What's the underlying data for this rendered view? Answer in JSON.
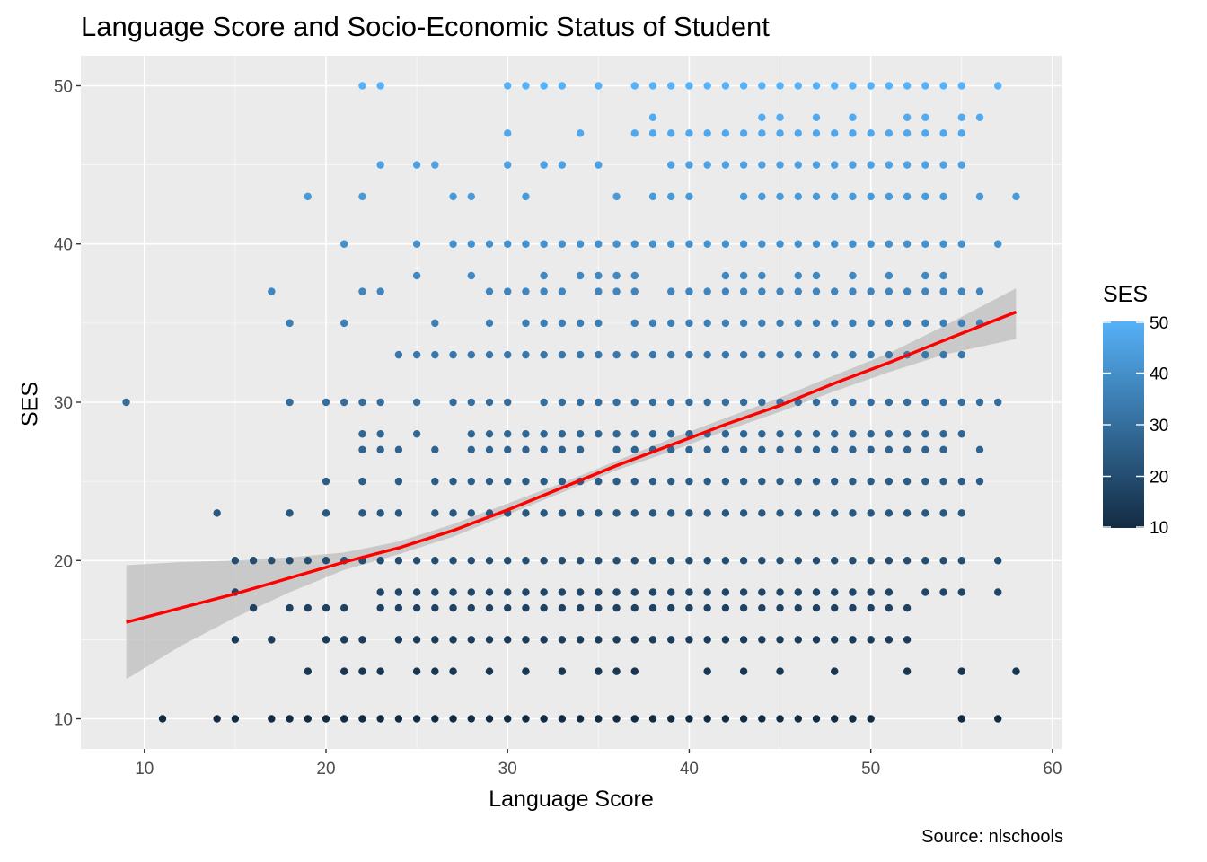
{
  "chart_data": {
    "type": "scatter",
    "title": "Language Score and Socio-Economic Status of Student",
    "xlabel": "Language Score",
    "ylabel": "SES",
    "caption": "Source: nlschools",
    "xlim": [
      6.5,
      60.5
    ],
    "ylim": [
      8.1,
      51.9
    ],
    "x_ticks": [
      10,
      20,
      30,
      40,
      50,
      60
    ],
    "y_ticks": [
      10,
      20,
      30,
      40,
      50
    ],
    "grid": true,
    "legend": {
      "title": "SES",
      "placement": "right",
      "type": "colorbar",
      "range": [
        10,
        50
      ],
      "ticks": [
        10,
        20,
        30,
        40,
        50
      ],
      "low_color": "#132B43",
      "high_color": "#56B1F7"
    },
    "panel_background": "#EBEBEB",
    "point_color_by": "SES",
    "smooth": {
      "method": "loess",
      "color": "#FF0000",
      "ribbon_color": "#BEBEBE",
      "x": [
        9,
        12,
        15,
        18,
        21,
        24,
        27,
        30,
        33,
        36,
        39,
        42,
        45,
        48,
        51,
        54,
        58
      ],
      "y": [
        16.1,
        17.0,
        17.9,
        18.9,
        19.9,
        20.8,
        21.9,
        23.2,
        24.6,
        26.0,
        27.3,
        28.6,
        29.8,
        31.2,
        32.5,
        33.9,
        35.7
      ],
      "lower": [
        12.5,
        14.6,
        16.4,
        18.0,
        19.4,
        20.4,
        21.5,
        22.9,
        24.3,
        25.7,
        26.9,
        28.2,
        29.4,
        30.7,
        31.9,
        33.0,
        34.0
      ],
      "upper": [
        19.7,
        19.9,
        20.0,
        20.2,
        20.5,
        21.2,
        22.3,
        23.6,
        24.9,
        26.3,
        27.7,
        29.0,
        30.3,
        31.7,
        33.1,
        34.8,
        37.2
      ]
    },
    "series": [
      {
        "y": 10,
        "x": [
          11,
          14,
          15,
          17,
          18,
          19,
          20,
          21,
          22,
          23,
          24,
          25,
          26,
          27,
          28,
          29,
          30,
          31,
          32,
          33,
          34,
          35,
          36,
          37,
          38,
          39,
          40,
          41,
          42,
          43,
          44,
          45,
          46,
          47,
          48,
          49,
          50,
          55,
          57
        ]
      },
      {
        "y": 13,
        "x": [
          19,
          21,
          22,
          23,
          25,
          26,
          27,
          29,
          31,
          33,
          35,
          36,
          37,
          41,
          43,
          45,
          48,
          52,
          55,
          58
        ]
      },
      {
        "y": 15,
        "x": [
          15,
          17,
          20,
          21,
          22,
          24,
          25,
          26,
          27,
          28,
          29,
          30,
          31,
          32,
          33,
          34,
          35,
          36,
          37,
          38,
          39,
          40,
          41,
          42,
          43,
          44,
          45,
          46,
          47,
          48,
          49,
          50,
          51,
          52
        ]
      },
      {
        "y": 17,
        "x": [
          16,
          18,
          19,
          20,
          21,
          23,
          24,
          25,
          26,
          27,
          28,
          29,
          30,
          31,
          32,
          33,
          34,
          35,
          36,
          37,
          38,
          39,
          40,
          41,
          42,
          43,
          44,
          45,
          46,
          47,
          48,
          49,
          50,
          51,
          52
        ]
      },
      {
        "y": 18,
        "x": [
          15,
          23,
          24,
          25,
          26,
          27,
          28,
          29,
          30,
          31,
          32,
          33,
          34,
          35,
          36,
          37,
          38,
          39,
          40,
          41,
          42,
          43,
          44,
          45,
          46,
          47,
          48,
          49,
          50,
          51,
          53,
          54,
          55,
          57
        ]
      },
      {
        "y": 20,
        "x": [
          15,
          16,
          17,
          18,
          19,
          20,
          21,
          22,
          23,
          24,
          25,
          26,
          27,
          28,
          29,
          30,
          31,
          32,
          33,
          34,
          35,
          36,
          37,
          38,
          39,
          40,
          41,
          42,
          43,
          44,
          45,
          46,
          47,
          48,
          49,
          50,
          51,
          52,
          53,
          54,
          55,
          57
        ]
      },
      {
        "y": 23,
        "x": [
          14,
          18,
          20,
          22,
          23,
          24,
          26,
          27,
          28,
          29,
          30,
          31,
          32,
          33,
          34,
          35,
          36,
          37,
          38,
          39,
          40,
          41,
          42,
          43,
          44,
          45,
          46,
          47,
          48,
          49,
          50,
          51,
          52,
          53,
          54,
          55
        ]
      },
      {
        "y": 25,
        "x": [
          20,
          22,
          24,
          26,
          27,
          28,
          29,
          30,
          31,
          32,
          33,
          34,
          35,
          36,
          37,
          38,
          39,
          40,
          41,
          42,
          43,
          44,
          45,
          46,
          47,
          48,
          49,
          50,
          51,
          52,
          53,
          54,
          55,
          56
        ]
      },
      {
        "y": 27,
        "x": [
          22,
          23,
          24,
          26,
          28,
          29,
          30,
          31,
          32,
          33,
          34,
          36,
          37,
          38,
          39,
          40,
          41,
          42,
          43,
          44,
          45,
          46,
          47,
          48,
          49,
          50,
          51,
          52,
          53,
          54,
          56
        ]
      },
      {
        "y": 28,
        "x": [
          22,
          23,
          25,
          28,
          29,
          30,
          31,
          32,
          33,
          34,
          35,
          36,
          37,
          38,
          39,
          40,
          41,
          42,
          43,
          44,
          45,
          46,
          47,
          48,
          49,
          50,
          51,
          52,
          53,
          54,
          55
        ]
      },
      {
        "y": 30,
        "x": [
          9,
          18,
          20,
          21,
          22,
          23,
          25,
          27,
          28,
          29,
          30,
          32,
          33,
          34,
          35,
          36,
          37,
          38,
          39,
          40,
          41,
          42,
          43,
          44,
          45,
          46,
          47,
          48,
          49,
          50,
          51,
          52,
          53,
          54,
          55,
          56,
          57
        ]
      },
      {
        "y": 33,
        "x": [
          24,
          25,
          26,
          27,
          28,
          29,
          30,
          31,
          32,
          33,
          34,
          35,
          36,
          37,
          38,
          39,
          40,
          41,
          42,
          43,
          44,
          45,
          46,
          47,
          48,
          49,
          50,
          51,
          52,
          53,
          54,
          55
        ]
      },
      {
        "y": 35,
        "x": [
          18,
          21,
          26,
          29,
          31,
          32,
          33,
          34,
          35,
          37,
          38,
          39,
          40,
          41,
          42,
          43,
          44,
          45,
          46,
          47,
          48,
          49,
          50,
          51,
          52,
          53,
          54,
          55,
          56
        ]
      },
      {
        "y": 37,
        "x": [
          17,
          22,
          23,
          29,
          30,
          31,
          32,
          33,
          35,
          36,
          37,
          39,
          40,
          41,
          42,
          43,
          44,
          45,
          46,
          47,
          48,
          49,
          50,
          51,
          52,
          53,
          54,
          55,
          56
        ]
      },
      {
        "y": 38,
        "x": [
          25,
          28,
          32,
          34,
          35,
          36,
          37,
          42,
          43,
          44,
          46,
          47,
          49,
          51,
          53,
          54
        ]
      },
      {
        "y": 40,
        "x": [
          21,
          25,
          27,
          28,
          29,
          30,
          31,
          32,
          33,
          34,
          35,
          36,
          37,
          38,
          39,
          40,
          41,
          42,
          43,
          44,
          45,
          46,
          47,
          48,
          49,
          50,
          51,
          52,
          53,
          54,
          55,
          57
        ]
      },
      {
        "y": 43,
        "x": [
          19,
          22,
          27,
          28,
          31,
          36,
          38,
          39,
          40,
          43,
          44,
          45,
          46,
          47,
          48,
          49,
          50,
          51,
          52,
          53,
          54,
          56,
          58
        ]
      },
      {
        "y": 45,
        "x": [
          23,
          25,
          26,
          30,
          32,
          33,
          35,
          39,
          40,
          41,
          42,
          43,
          44,
          45,
          46,
          47,
          48,
          49,
          50,
          51,
          52,
          53,
          54,
          55
        ]
      },
      {
        "y": 47,
        "x": [
          30,
          34,
          37,
          38,
          39,
          40,
          41,
          42,
          43,
          44,
          45,
          46,
          47,
          48,
          49,
          50,
          51,
          52,
          53,
          54,
          55
        ]
      },
      {
        "y": 48,
        "x": [
          38,
          44,
          45,
          47,
          49,
          52,
          53,
          55,
          56
        ]
      },
      {
        "y": 50,
        "x": [
          22,
          23,
          30,
          31,
          32,
          33,
          35,
          37,
          38,
          39,
          40,
          41,
          42,
          43,
          44,
          45,
          46,
          47,
          48,
          49,
          50,
          51,
          52,
          53,
          54,
          55,
          57
        ]
      }
    ]
  }
}
